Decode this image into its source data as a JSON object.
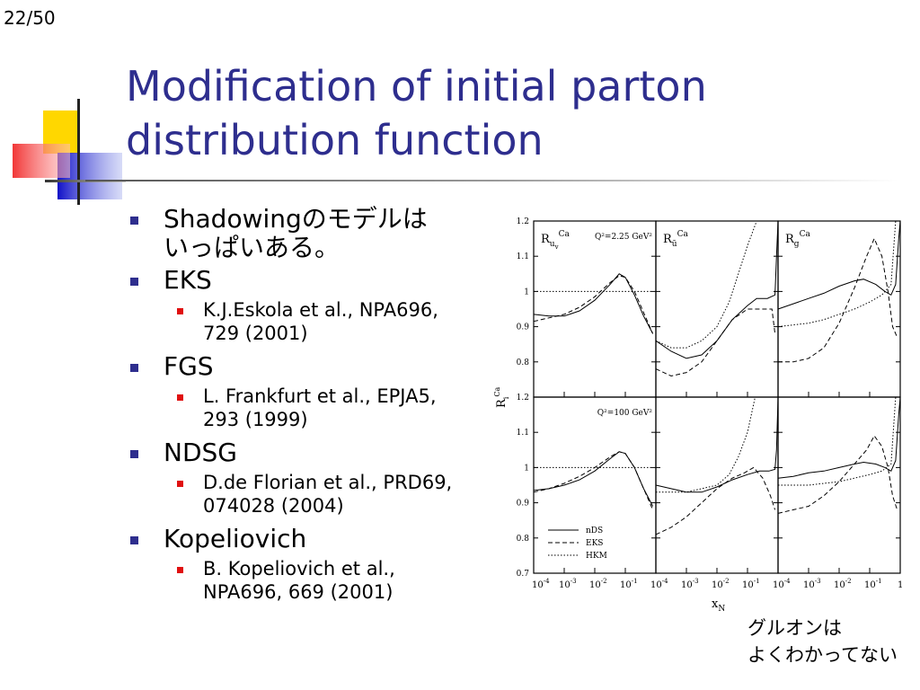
{
  "slide_number": "22/50",
  "title": {
    "line1": "Modification of initial parton",
    "line2": "distribution function"
  },
  "colors": {
    "title": "#2E2E8E",
    "bullet_l1": "#2E2E8E",
    "bullet_l2": "#E01010",
    "deco_yellow": "#FFD700",
    "deco_blue": "#2030D0",
    "deco_red": "#F03030"
  },
  "bullets": [
    {
      "text": "Shadowingのモデルは",
      "text2": "いっぱいある。"
    },
    {
      "text": "EKS",
      "sub": {
        "line1": "K.J.Eskola et al., NPA696,",
        "line2": "729 (2001)"
      }
    },
    {
      "text": "FGS",
      "sub": {
        "line1": "L. Frankfurt et al., EPJA5,",
        "line2": "293 (1999)"
      }
    },
    {
      "text": "NDSG",
      "sub": {
        "line1": "D.de Florian et al., PRD69,",
        "line2": "074028 (2004)"
      }
    },
    {
      "text": "Kopeliovich",
      "sub": {
        "line1": "B. Kopeliovich et al.,",
        "line2": "NPA696, 669 (2001)"
      }
    }
  ],
  "chart_data": {
    "type": "line",
    "y_axis_label": "R",
    "y_axis_label_sub": "i",
    "y_axis_label_sup": "Ca",
    "x_axis_label": "x",
    "x_axis_label_sub": "N",
    "top_row_q2": "Q²=2.25 GeV²",
    "bottom_row_q2": "Q²=100 GeV²",
    "panel_labels": [
      {
        "main": "R",
        "sub": "u",
        "subsub": "v",
        "sup": "Ca"
      },
      {
        "main": "R",
        "sub": "ū",
        "sup": "Ca"
      },
      {
        "main": "R",
        "sub": "g",
        "sup": "Ca"
      }
    ],
    "top_y_ticks": [
      "1.2",
      "1.1",
      "1",
      "0.9",
      "0.8"
    ],
    "bottom_y_ticks": [
      "1.2",
      "1.1",
      "1",
      "0.9",
      "0.8",
      "0.7"
    ],
    "x_ticks": [
      "10",
      "10",
      "10",
      "10"
    ],
    "x_tick_exponents": [
      "-4",
      "-3",
      "-2",
      "-1"
    ],
    "x_tick_last": "1",
    "ylim_top": [
      0.7,
      1.2
    ],
    "ylim_bottom": [
      0.7,
      1.2
    ],
    "xlim_log10": [
      -4,
      0
    ],
    "legend": [
      {
        "name": "nDS",
        "style": "solid"
      },
      {
        "name": "EKS",
        "style": "dashed"
      },
      {
        "name": "HKM",
        "style": "dotted"
      }
    ],
    "panels": [
      {
        "row": 0,
        "col": 0,
        "series": {
          "nDS": [
            [
              -4,
              0.935
            ],
            [
              -3.5,
              0.93
            ],
            [
              -3,
              0.93
            ],
            [
              -2.5,
              0.945
            ],
            [
              -2,
              0.975
            ],
            [
              -1.5,
              1.02
            ],
            [
              -1.2,
              1.05
            ],
            [
              -1,
              1.04
            ],
            [
              -0.7,
              0.99
            ],
            [
              -0.4,
              0.93
            ],
            [
              -0.1,
              0.88
            ]
          ],
          "EKS": [
            [
              -4,
              0.915
            ],
            [
              -3.5,
              0.925
            ],
            [
              -3,
              0.935
            ],
            [
              -2.5,
              0.955
            ],
            [
              -2,
              0.985
            ],
            [
              -1.5,
              1.025
            ],
            [
              -1.2,
              1.045
            ],
            [
              -1,
              1.04
            ],
            [
              -0.7,
              1.0
            ],
            [
              -0.4,
              0.94
            ],
            [
              -0.1,
              0.88
            ]
          ],
          "HKM": [
            [
              -4,
              1.0
            ],
            [
              -3,
              1.0
            ],
            [
              -2,
              1.0
            ],
            [
              -1,
              1.0
            ],
            [
              -0.5,
              1.0
            ],
            [
              -0.1,
              1.0
            ]
          ]
        }
      },
      {
        "row": 0,
        "col": 1,
        "series": {
          "nDS": [
            [
              -4,
              0.86
            ],
            [
              -3.5,
              0.83
            ],
            [
              -3,
              0.81
            ],
            [
              -2.5,
              0.82
            ],
            [
              -2,
              0.86
            ],
            [
              -1.5,
              0.92
            ],
            [
              -1,
              0.96
            ],
            [
              -0.7,
              0.98
            ],
            [
              -0.35,
              0.98
            ],
            [
              -0.1,
              0.99
            ],
            [
              -0.05,
              1.1
            ],
            [
              0,
              1.2
            ]
          ],
          "EKS": [
            [
              -4,
              0.78
            ],
            [
              -3.5,
              0.76
            ],
            [
              -3,
              0.77
            ],
            [
              -2.5,
              0.8
            ],
            [
              -2,
              0.86
            ],
            [
              -1.5,
              0.92
            ],
            [
              -1,
              0.95
            ],
            [
              -0.5,
              0.95
            ],
            [
              -0.2,
              0.95
            ],
            [
              -0.1,
              0.88
            ]
          ],
          "HKM": [
            [
              -4,
              0.86
            ],
            [
              -3.5,
              0.84
            ],
            [
              -3,
              0.84
            ],
            [
              -2.5,
              0.86
            ],
            [
              -2,
              0.9
            ],
            [
              -1.6,
              0.97
            ],
            [
              -1.3,
              1.05
            ],
            [
              -1.0,
              1.13
            ],
            [
              -0.7,
              1.2
            ]
          ]
        }
      },
      {
        "row": 0,
        "col": 2,
        "series": {
          "nDS": [
            [
              -4,
              0.95
            ],
            [
              -3.5,
              0.965
            ],
            [
              -3,
              0.98
            ],
            [
              -2.5,
              0.995
            ],
            [
              -2,
              1.015
            ],
            [
              -1.5,
              1.03
            ],
            [
              -1.2,
              1.035
            ],
            [
              -0.8,
              1.02
            ],
            [
              -0.5,
              1.0
            ],
            [
              -0.3,
              0.99
            ],
            [
              -0.15,
              1.02
            ],
            [
              -0.05,
              1.15
            ],
            [
              0,
              1.2
            ]
          ],
          "EKS": [
            [
              -4,
              0.8
            ],
            [
              -3.5,
              0.8
            ],
            [
              -3,
              0.81
            ],
            [
              -2.5,
              0.84
            ],
            [
              -2,
              0.91
            ],
            [
              -1.5,
              1.01
            ],
            [
              -1.1,
              1.1
            ],
            [
              -0.85,
              1.15
            ],
            [
              -0.6,
              1.1
            ],
            [
              -0.4,
              1.0
            ],
            [
              -0.25,
              0.9
            ],
            [
              -0.1,
              0.87
            ]
          ],
          "HKM": [
            [
              -4,
              0.9
            ],
            [
              -3,
              0.91
            ],
            [
              -2.5,
              0.92
            ],
            [
              -2,
              0.935
            ],
            [
              -1.5,
              0.95
            ],
            [
              -1,
              0.97
            ],
            [
              -0.6,
              0.99
            ],
            [
              -0.3,
              1.02
            ],
            [
              -0.15,
              1.2
            ]
          ]
        }
      },
      {
        "row": 1,
        "col": 0,
        "series": {
          "nDS": [
            [
              -4,
              0.935
            ],
            [
              -3.5,
              0.94
            ],
            [
              -3,
              0.95
            ],
            [
              -2.5,
              0.965
            ],
            [
              -2,
              0.99
            ],
            [
              -1.5,
              1.025
            ],
            [
              -1.2,
              1.045
            ],
            [
              -1,
              1.04
            ],
            [
              -0.7,
              1.0
            ],
            [
              -0.4,
              0.94
            ],
            [
              -0.1,
              0.89
            ]
          ],
          "EKS": [
            [
              -4,
              0.93
            ],
            [
              -3.5,
              0.94
            ],
            [
              -3,
              0.955
            ],
            [
              -2.5,
              0.975
            ],
            [
              -2,
              1.0
            ],
            [
              -1.5,
              1.03
            ],
            [
              -1.2,
              1.045
            ],
            [
              -1,
              1.04
            ],
            [
              -0.7,
              1.0
            ],
            [
              -0.4,
              0.94
            ],
            [
              -0.1,
              0.88
            ]
          ],
          "HKM": [
            [
              -4,
              1.0
            ],
            [
              -3,
              1.0
            ],
            [
              -2,
              1.0
            ],
            [
              -1,
              1.0
            ],
            [
              -0.5,
              1.0
            ],
            [
              -0.1,
              1.0
            ]
          ]
        }
      },
      {
        "row": 1,
        "col": 1,
        "series": {
          "nDS": [
            [
              -4,
              0.95
            ],
            [
              -3.5,
              0.94
            ],
            [
              -3,
              0.93
            ],
            [
              -2.5,
              0.93
            ],
            [
              -2,
              0.945
            ],
            [
              -1.5,
              0.965
            ],
            [
              -1,
              0.98
            ],
            [
              -0.6,
              0.99
            ],
            [
              -0.3,
              0.99
            ],
            [
              -0.1,
              0.995
            ],
            [
              -0.05,
              1.05
            ],
            [
              0,
              1.2
            ]
          ],
          "EKS": [
            [
              -4,
              0.81
            ],
            [
              -3.5,
              0.83
            ],
            [
              -3,
              0.86
            ],
            [
              -2.5,
              0.9
            ],
            [
              -2,
              0.94
            ],
            [
              -1.5,
              0.97
            ],
            [
              -1.1,
              0.985
            ],
            [
              -0.8,
              1.0
            ],
            [
              -0.5,
              0.97
            ],
            [
              -0.25,
              0.92
            ],
            [
              -0.1,
              0.88
            ]
          ],
          "HKM": [
            [
              -4,
              0.93
            ],
            [
              -3.5,
              0.93
            ],
            [
              -3,
              0.93
            ],
            [
              -2.5,
              0.94
            ],
            [
              -2,
              0.95
            ],
            [
              -1.6,
              0.98
            ],
            [
              -1.3,
              1.03
            ],
            [
              -1,
              1.1
            ],
            [
              -0.75,
              1.2
            ]
          ]
        }
      },
      {
        "row": 1,
        "col": 2,
        "series": {
          "nDS": [
            [
              -4,
              0.97
            ],
            [
              -3.5,
              0.975
            ],
            [
              -3,
              0.985
            ],
            [
              -2.5,
              0.99
            ],
            [
              -2,
              1.0
            ],
            [
              -1.5,
              1.01
            ],
            [
              -1.2,
              1.015
            ],
            [
              -0.8,
              1.01
            ],
            [
              -0.5,
              1.0
            ],
            [
              -0.3,
              0.99
            ],
            [
              -0.15,
              1.02
            ],
            [
              -0.05,
              1.15
            ],
            [
              0,
              1.2
            ]
          ],
          "EKS": [
            [
              -4,
              0.87
            ],
            [
              -3.5,
              0.88
            ],
            [
              -3,
              0.89
            ],
            [
              -2.5,
              0.92
            ],
            [
              -2,
              0.96
            ],
            [
              -1.5,
              1.01
            ],
            [
              -1.1,
              1.05
            ],
            [
              -0.85,
              1.09
            ],
            [
              -0.6,
              1.06
            ],
            [
              -0.4,
              1.0
            ],
            [
              -0.25,
              0.92
            ],
            [
              -0.1,
              0.88
            ]
          ],
          "HKM": [
            [
              -4,
              0.95
            ],
            [
              -3,
              0.95
            ],
            [
              -2.5,
              0.955
            ],
            [
              -2,
              0.96
            ],
            [
              -1.5,
              0.97
            ],
            [
              -1,
              0.98
            ],
            [
              -0.6,
              0.99
            ],
            [
              -0.3,
              1.01
            ],
            [
              -0.15,
              1.2
            ]
          ]
        }
      }
    ]
  },
  "caption": {
    "line1": "グルオンは",
    "line2": "よくわかってない"
  }
}
